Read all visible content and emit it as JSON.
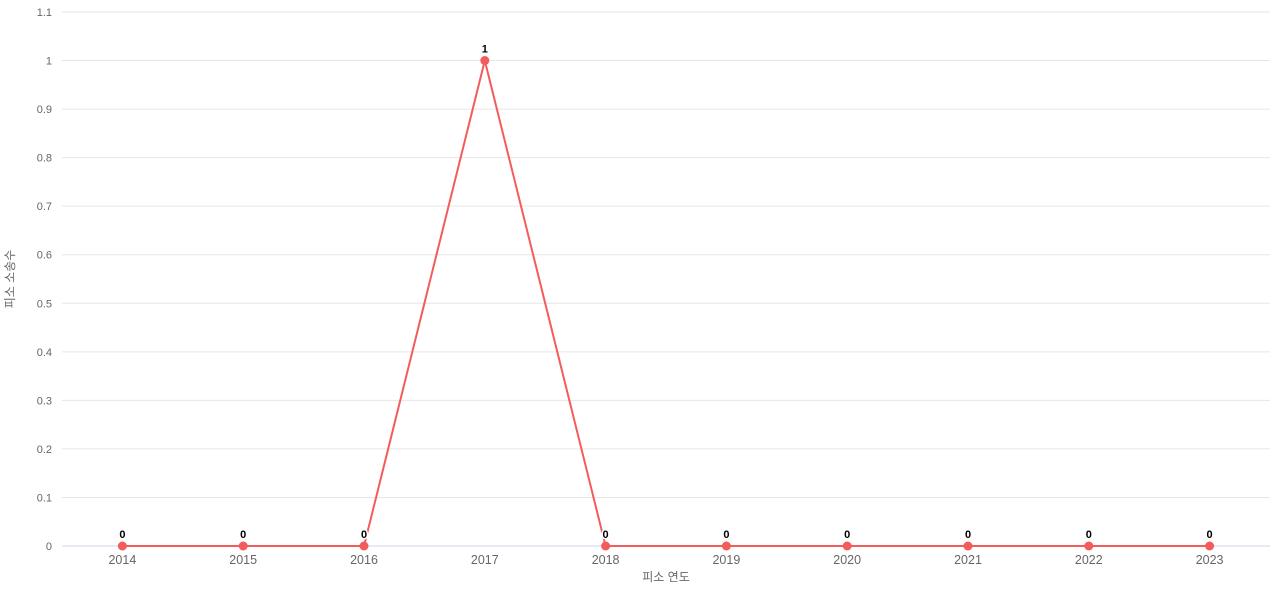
{
  "chart_data": {
    "type": "line",
    "title": "",
    "categories": [
      "2014",
      "2015",
      "2016",
      "2017",
      "2018",
      "2019",
      "2020",
      "2021",
      "2022",
      "2023"
    ],
    "series": [
      {
        "values": [
          0,
          0,
          0,
          1,
          0,
          0,
          0,
          0,
          0,
          0
        ],
        "color": "#f45b5b"
      }
    ],
    "data_labels": [
      "0",
      "0",
      "0",
      "1",
      "0",
      "0",
      "0",
      "0",
      "0",
      "0"
    ],
    "xlabel": "피소 연도",
    "ylabel": "피소 소송수",
    "ylim": [
      0,
      1.1
    ],
    "ytick_values": [
      0,
      0.1,
      0.2,
      0.3,
      0.4,
      0.5,
      0.6,
      0.7,
      0.8,
      0.9,
      1,
      1.1
    ],
    "ytick_labels": [
      "0",
      "0.1",
      "0.2",
      "0.3",
      "0.4",
      "0.5",
      "0.6",
      "0.7",
      "0.8",
      "0.9",
      "1",
      "1.1"
    ],
    "grid": true,
    "legend": false,
    "marker_radius": 4.5,
    "line_width": 2
  },
  "style": {
    "gridline_color": "#e6e6e6",
    "zero_axis_line_color": "#ccd6eb",
    "tick_label_color": "#666666",
    "axis_title_color": "#666666",
    "data_label_color": "#000000",
    "background_color": "#ffffff"
  }
}
